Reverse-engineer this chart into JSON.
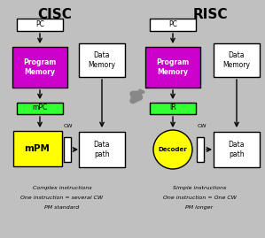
{
  "bg_color": "#c0c0c0",
  "title_cisc": "CISC",
  "title_risc": "RISC",
  "box_edge_color": "#000000",
  "purple_color": "#cc00cc",
  "green_color": "#33ff33",
  "yellow_color": "#ffff00",
  "white_color": "#ffffff",
  "cisc_bottom": [
    "Complex instructions",
    "One instruction = several CW",
    "PM standard"
  ],
  "risc_bottom": [
    "Simple instructions",
    "One instruction = One CW",
    "PM longer"
  ],
  "font_size": 5.5,
  "title_font_size": 11
}
